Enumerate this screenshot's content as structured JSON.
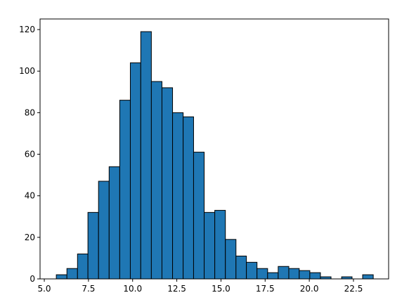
{
  "chart_data": {
    "type": "histogram",
    "bins": [
      5.68,
      6.28,
      6.88,
      7.47,
      8.07,
      8.67,
      9.27,
      9.87,
      10.46,
      11.06,
      11.66,
      12.26,
      12.86,
      13.45,
      14.05,
      14.65,
      15.25,
      15.85,
      16.44,
      17.04,
      17.64,
      18.24,
      18.84,
      19.43,
      20.03,
      20.63,
      21.23,
      21.83,
      22.42,
      23.02,
      23.62
    ],
    "values": [
      2,
      5,
      12,
      32,
      47,
      54,
      86,
      104,
      119,
      95,
      92,
      80,
      78,
      61,
      32,
      33,
      19,
      11,
      8,
      5,
      3,
      6,
      5,
      4,
      3,
      1,
      0,
      1,
      0,
      2
    ],
    "color": "#1f77b4",
    "edgecolor": "#000000",
    "xlim": [
      4.76,
      24.49
    ],
    "ylim": [
      0,
      125.1
    ],
    "xticks": [
      {
        "value": 5,
        "label": "5.0"
      },
      {
        "value": 7.5,
        "label": "7.5"
      },
      {
        "value": 10,
        "label": "10.0"
      },
      {
        "value": 12.5,
        "label": "12.5"
      },
      {
        "value": 15,
        "label": "15.0"
      },
      {
        "value": 17.5,
        "label": "17.5"
      },
      {
        "value": 20,
        "label": "20.0"
      },
      {
        "value": 22.5,
        "label": "22.5"
      }
    ],
    "yticks": [
      0,
      20,
      40,
      60,
      80,
      100,
      120
    ]
  }
}
